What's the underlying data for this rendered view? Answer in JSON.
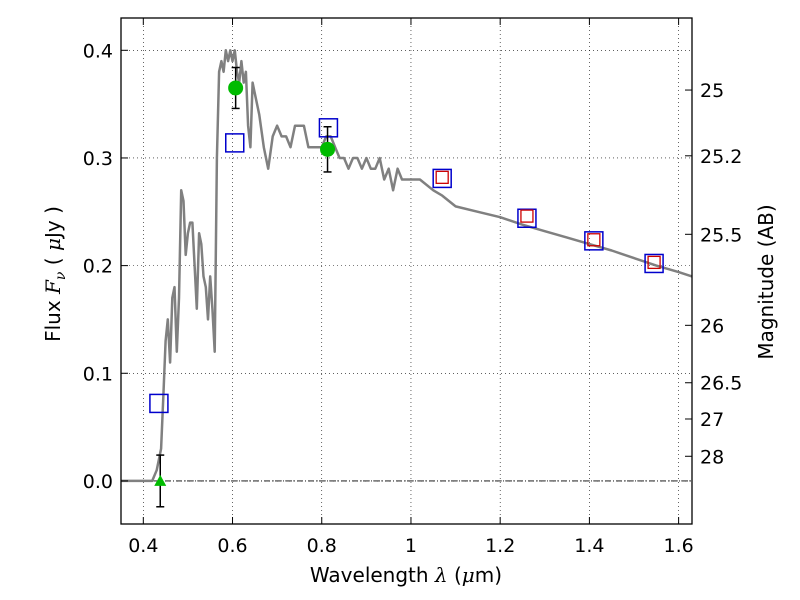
{
  "chart_data": {
    "type": "scatter",
    "title": "",
    "xlabel": {
      "pre": "Wavelength  ",
      "sym": "λ",
      "mid": " (",
      "mu": "μ",
      "post": "m)"
    },
    "ylabel": {
      "pre": "Flux  ",
      "sym": "F",
      "sub": "ν",
      "mid": "  ( ",
      "mu": "μ",
      "post": "Jy )"
    },
    "y2label": "Magnitude (AB)",
    "xlim": [
      0.35,
      1.63
    ],
    "ylim": [
      -0.04,
      0.43
    ],
    "xticks": [
      {
        "v": 0.4,
        "label": "0.4"
      },
      {
        "v": 0.6,
        "label": "0.6"
      },
      {
        "v": 0.8,
        "label": "0.8"
      },
      {
        "v": 1.0,
        "label": "1"
      },
      {
        "v": 1.2,
        "label": "1.2"
      },
      {
        "v": 1.4,
        "label": "1.4"
      },
      {
        "v": 1.6,
        "label": "1.6"
      }
    ],
    "yticks": [
      {
        "v": 0.0,
        "label": "0.0"
      },
      {
        "v": 0.1,
        "label": "0.1"
      },
      {
        "v": 0.2,
        "label": "0.2"
      },
      {
        "v": 0.3,
        "label": "0.3"
      },
      {
        "v": 0.4,
        "label": "0.4"
      }
    ],
    "y2ticks": [
      {
        "mag": 25,
        "label": "25"
      },
      {
        "mag": 25.2,
        "label": "25.2"
      },
      {
        "mag": 25.5,
        "label": "25.5"
      },
      {
        "mag": 26,
        "label": "26"
      },
      {
        "mag": 26.5,
        "label": "26.5"
      },
      {
        "mag": 27,
        "label": "27"
      },
      {
        "mag": 28,
        "label": "28"
      }
    ],
    "grid": true,
    "colors": {
      "model": "#808080",
      "open_square": "#0000cc",
      "red_square": "#cc0000",
      "measured": "#00bb00",
      "errorbar": "#000000",
      "zero_line": "#000000"
    },
    "model_sed": {
      "name": "",
      "x": [
        0.35,
        0.42,
        0.43,
        0.44,
        0.445,
        0.45,
        0.455,
        0.46,
        0.465,
        0.47,
        0.475,
        0.48,
        0.485,
        0.49,
        0.495,
        0.5,
        0.505,
        0.51,
        0.515,
        0.52,
        0.525,
        0.53,
        0.535,
        0.54,
        0.545,
        0.55,
        0.555,
        0.56,
        0.565,
        0.57,
        0.575,
        0.58,
        0.585,
        0.59,
        0.595,
        0.6,
        0.605,
        0.61,
        0.615,
        0.62,
        0.625,
        0.63,
        0.635,
        0.64,
        0.645,
        0.65,
        0.66,
        0.67,
        0.68,
        0.69,
        0.7,
        0.71,
        0.72,
        0.73,
        0.74,
        0.75,
        0.76,
        0.77,
        0.78,
        0.79,
        0.8,
        0.81,
        0.82,
        0.83,
        0.84,
        0.85,
        0.86,
        0.87,
        0.88,
        0.89,
        0.9,
        0.91,
        0.92,
        0.93,
        0.94,
        0.95,
        0.96,
        0.97,
        0.98,
        1.0,
        1.02,
        1.05,
        1.07,
        1.1,
        1.15,
        1.2,
        1.25,
        1.3,
        1.35,
        1.4,
        1.45,
        1.5,
        1.55,
        1.6,
        1.63
      ],
      "y": [
        0.0,
        0.0,
        0.01,
        0.03,
        0.08,
        0.13,
        0.15,
        0.11,
        0.17,
        0.18,
        0.12,
        0.17,
        0.27,
        0.26,
        0.21,
        0.23,
        0.24,
        0.24,
        0.2,
        0.16,
        0.23,
        0.22,
        0.19,
        0.18,
        0.15,
        0.19,
        0.16,
        0.12,
        0.3,
        0.38,
        0.39,
        0.38,
        0.4,
        0.39,
        0.4,
        0.39,
        0.4,
        0.38,
        0.37,
        0.39,
        0.37,
        0.38,
        0.33,
        0.31,
        0.37,
        0.36,
        0.34,
        0.31,
        0.29,
        0.32,
        0.33,
        0.32,
        0.32,
        0.31,
        0.33,
        0.33,
        0.33,
        0.31,
        0.31,
        0.31,
        0.31,
        0.32,
        0.32,
        0.31,
        0.3,
        0.3,
        0.29,
        0.3,
        0.3,
        0.29,
        0.3,
        0.29,
        0.29,
        0.3,
        0.28,
        0.29,
        0.27,
        0.29,
        0.28,
        0.28,
        0.28,
        0.27,
        0.265,
        0.255,
        0.25,
        0.245,
        0.238,
        0.232,
        0.226,
        0.22,
        0.214,
        0.207,
        0.2,
        0.194,
        0.19
      ]
    },
    "open_squares": [
      {
        "x": 0.435,
        "y": 0.072
      },
      {
        "x": 0.605,
        "y": 0.314
      },
      {
        "x": 0.815,
        "y": 0.328
      },
      {
        "x": 1.07,
        "y": 0.281
      },
      {
        "x": 1.26,
        "y": 0.244
      },
      {
        "x": 1.41,
        "y": 0.223
      },
      {
        "x": 1.545,
        "y": 0.202
      }
    ],
    "red_squares": [
      {
        "x": 1.07,
        "y": 0.282
      },
      {
        "x": 1.26,
        "y": 0.246
      },
      {
        "x": 1.41,
        "y": 0.224
      },
      {
        "x": 1.545,
        "y": 0.203
      }
    ],
    "measured": [
      {
        "x": 0.607,
        "y": 0.365,
        "err": 0.019,
        "marker": "circle"
      },
      {
        "x": 0.813,
        "y": 0.308,
        "err": 0.021,
        "marker": "circle"
      }
    ],
    "limits": [
      {
        "x": 0.438,
        "y": 0.0,
        "err": 0.024,
        "marker": "triangle"
      }
    ]
  }
}
